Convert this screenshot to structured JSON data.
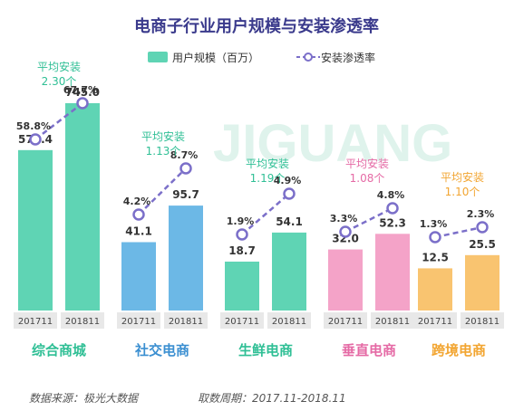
{
  "chart_data": {
    "type": "bar",
    "title": "电商子行业用户规模与安装渗透率",
    "legend": {
      "bar_label": "用户规模（百万）",
      "line_label": "安装渗透率",
      "placement": "top-center"
    },
    "watermark": "JIGUANG 极光大数据",
    "groups": [
      {
        "name": "综合商城",
        "color": "#5fd4b4",
        "name_color": "#2fbf95",
        "avg_label": "平均安装",
        "avg_value": "2.30个",
        "avg_color": "#2fbf95",
        "periods": [
          "201711",
          "201811"
        ],
        "users": [
          576.4,
          745.0
        ],
        "users_labels": [
          "576.4",
          "745.0"
        ],
        "penetration": [
          58.8,
          67.7
        ],
        "penetration_labels": [
          "58.8%",
          "67.7%"
        ]
      },
      {
        "name": "社交电商",
        "color": "#6cb8e6",
        "name_color": "#3b8fd1",
        "avg_label": "平均安装",
        "avg_value": "1.13个",
        "avg_color": "#2fbf95",
        "periods": [
          "201711",
          "201811"
        ],
        "users": [
          41.1,
          95.7
        ],
        "users_labels": [
          "41.1",
          "95.7"
        ],
        "penetration": [
          4.2,
          8.7
        ],
        "penetration_labels": [
          "4.2%",
          "8.7%"
        ]
      },
      {
        "name": "生鲜电商",
        "color": "#5fd4b4",
        "name_color": "#2fbf95",
        "avg_label": "平均安装",
        "avg_value": "1.19个",
        "avg_color": "#2fbf95",
        "periods": [
          "201711",
          "201811"
        ],
        "users": [
          18.7,
          54.1
        ],
        "users_labels": [
          "18.7",
          "54.1"
        ],
        "penetration": [
          1.9,
          4.9
        ],
        "penetration_labels": [
          "1.9%",
          "4.9%"
        ]
      },
      {
        "name": "垂直电商",
        "color": "#f4a3c8",
        "name_color": "#e56aa5",
        "avg_label": "平均安装",
        "avg_value": "1.08个",
        "avg_color": "#e56aa5",
        "periods": [
          "201711",
          "201811"
        ],
        "users": [
          32.0,
          52.3
        ],
        "users_labels": [
          "32.0",
          "52.3"
        ],
        "penetration": [
          3.3,
          4.8
        ],
        "penetration_labels": [
          "3.3%",
          "4.8%"
        ]
      },
      {
        "name": "跨境电商",
        "color": "#f9c470",
        "name_color": "#f2a531",
        "avg_label": "平均安装",
        "avg_value": "1.10个",
        "avg_color": "#f2a531",
        "periods": [
          "201711",
          "201811"
        ],
        "users": [
          12.5,
          25.5
        ],
        "users_labels": [
          "12.5",
          "25.5"
        ],
        "penetration": [
          1.3,
          2.3
        ],
        "penetration_labels": [
          "1.3%",
          "2.3%"
        ]
      }
    ]
  },
  "footer": {
    "source": "数据来源：极光大数据",
    "period": "取数周期：2017.11-2018.11"
  },
  "colors": {
    "title": "#3a3a8c",
    "line": "#7b6fc9",
    "label_text": "#333333",
    "period_box": "#e8e8e8",
    "footer": "#555555",
    "watermark": "#dff3ec"
  }
}
